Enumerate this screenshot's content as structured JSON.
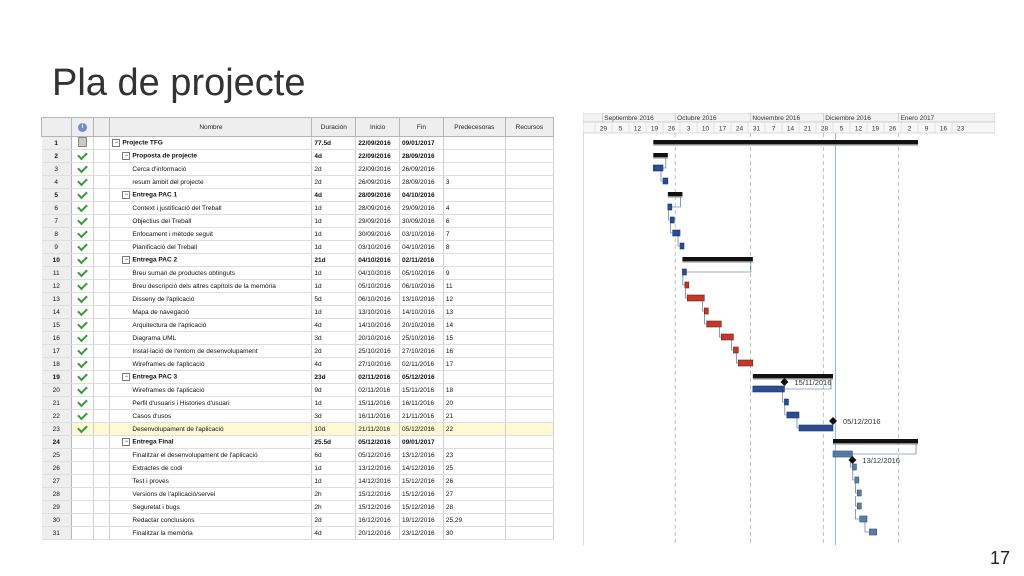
{
  "slide": {
    "title": "Pla de projecte",
    "number": "17"
  },
  "columns": {
    "name": "Nombre",
    "duration": "Duración",
    "start": "Inicio",
    "finish": "Fin",
    "predecessors": "Predecesoras",
    "resources": "Recursos",
    "info": "i"
  },
  "tasks": [
    {
      "id": "1",
      "name": "Projecte TFG",
      "dur": "77.5d",
      "start": "22/09/2016",
      "end": "09/01/2017",
      "pred": "",
      "summary": true,
      "level": 0,
      "icon": "note"
    },
    {
      "id": "2",
      "name": "Proposta de projecte",
      "dur": "4d",
      "start": "22/09/2016",
      "end": "28/09/2016",
      "pred": "",
      "summary": true,
      "level": 1,
      "icon": "check"
    },
    {
      "id": "3",
      "name": "Cerca d'informació",
      "dur": "2d",
      "start": "22/09/2016",
      "end": "26/09/2016",
      "pred": "",
      "summary": false,
      "level": 2,
      "icon": "check"
    },
    {
      "id": "4",
      "name": "resum àmbit del projecte",
      "dur": "2d",
      "start": "26/09/2016",
      "end": "28/09/2016",
      "pred": "3",
      "summary": false,
      "level": 2,
      "icon": "check"
    },
    {
      "id": "5",
      "name": "Entrega PAC 1",
      "dur": "4d",
      "start": "28/09/2016",
      "end": "04/10/2016",
      "pred": "",
      "summary": true,
      "level": 1,
      "icon": "check"
    },
    {
      "id": "6",
      "name": "Context i justificació del Treball",
      "dur": "1d",
      "start": "28/09/2016",
      "end": "29/09/2016",
      "pred": "4",
      "summary": false,
      "level": 2,
      "icon": "check"
    },
    {
      "id": "7",
      "name": "Objectius del Treball",
      "dur": "1d",
      "start": "29/09/2016",
      "end": "30/09/2016",
      "pred": "6",
      "summary": false,
      "level": 2,
      "icon": "check"
    },
    {
      "id": "8",
      "name": "Enfocament i mètode seguit",
      "dur": "1d",
      "start": "30/09/2016",
      "end": "03/10/2016",
      "pred": "7",
      "summary": false,
      "level": 2,
      "icon": "check"
    },
    {
      "id": "9",
      "name": "Planificació del Treball",
      "dur": "1d",
      "start": "03/10/2016",
      "end": "04/10/2016",
      "pred": "8",
      "summary": false,
      "level": 2,
      "icon": "check"
    },
    {
      "id": "10",
      "name": "Entrega PAC 2",
      "dur": "21d",
      "start": "04/10/2016",
      "end": "02/11/2016",
      "pred": "",
      "summary": true,
      "level": 1,
      "icon": "check"
    },
    {
      "id": "11",
      "name": "Breu sumari de productes obtinguts",
      "dur": "1d",
      "start": "04/10/2016",
      "end": "05/10/2016",
      "pred": "9",
      "summary": false,
      "level": 2,
      "icon": "check"
    },
    {
      "id": "12",
      "name": "Breu descripció dels altres capítols de la memòria",
      "dur": "1d",
      "start": "05/10/2016",
      "end": "06/10/2016",
      "pred": "11",
      "summary": false,
      "level": 2,
      "icon": "check"
    },
    {
      "id": "13",
      "name": "Disseny de l'aplicació",
      "dur": "5d",
      "start": "06/10/2016",
      "end": "13/10/2016",
      "pred": "12",
      "summary": false,
      "level": 2,
      "icon": "check"
    },
    {
      "id": "14",
      "name": "Mapa de navegació",
      "dur": "1d",
      "start": "13/10/2016",
      "end": "14/10/2016",
      "pred": "13",
      "summary": false,
      "level": 2,
      "icon": "check"
    },
    {
      "id": "15",
      "name": "Arquitectura de l'aplicació",
      "dur": "4d",
      "start": "14/10/2016",
      "end": "20/10/2016",
      "pred": "14",
      "summary": false,
      "level": 2,
      "icon": "check"
    },
    {
      "id": "16",
      "name": "Diagrama UML",
      "dur": "3d",
      "start": "20/10/2016",
      "end": "25/10/2016",
      "pred": "15",
      "summary": false,
      "level": 2,
      "icon": "check"
    },
    {
      "id": "17",
      "name": "Instal·lació de l'entorn de desenvolupament",
      "dur": "2d",
      "start": "25/10/2016",
      "end": "27/10/2016",
      "pred": "16",
      "summary": false,
      "level": 2,
      "icon": "check"
    },
    {
      "id": "18",
      "name": "Wireframes de l'aplicació",
      "dur": "4d",
      "start": "27/10/2016",
      "end": "02/11/2016",
      "pred": "17",
      "summary": false,
      "level": 2,
      "icon": "check"
    },
    {
      "id": "19",
      "name": "Entrega PAC 3",
      "dur": "23d",
      "start": "02/11/2016",
      "end": "05/12/2016",
      "pred": "",
      "summary": true,
      "level": 1,
      "icon": "check"
    },
    {
      "id": "20",
      "name": "Wireframes de l'aplicació",
      "dur": "9d",
      "start": "02/11/2016",
      "end": "15/11/2016",
      "pred": "18",
      "summary": false,
      "level": 2,
      "icon": "check"
    },
    {
      "id": "21",
      "name": "Perfil d'usuaris i Histories d'usuari",
      "dur": "1d",
      "start": "15/11/2016",
      "end": "16/11/2016",
      "pred": "20",
      "summary": false,
      "level": 2,
      "icon": "check"
    },
    {
      "id": "22",
      "name": "Casos d'usos",
      "dur": "3d",
      "start": "16/11/2016",
      "end": "21/11/2016",
      "pred": "21",
      "summary": false,
      "level": 2,
      "icon": "check"
    },
    {
      "id": "23",
      "name": "Desenvolupament de l'aplicació",
      "dur": "10d",
      "start": "21/11/2016",
      "end": "05/12/2016",
      "pred": "22",
      "summary": false,
      "level": 2,
      "icon": "check",
      "highlight": true
    },
    {
      "id": "24",
      "name": "Entrega Final",
      "dur": "25.5d",
      "start": "05/12/2016",
      "end": "09/01/2017",
      "pred": "",
      "summary": true,
      "level": 1,
      "icon": ""
    },
    {
      "id": "25",
      "name": "Finalitzar el desenvolupament de l'aplicació",
      "dur": "6d",
      "start": "05/12/2016",
      "end": "13/12/2016",
      "pred": "23",
      "summary": false,
      "level": 2,
      "icon": ""
    },
    {
      "id": "26",
      "name": "Extractes de codi",
      "dur": "1d",
      "start": "13/12/2016",
      "end": "14/12/2016",
      "pred": "25",
      "summary": false,
      "level": 2,
      "icon": ""
    },
    {
      "id": "27",
      "name": "Test i proves",
      "dur": "1d",
      "start": "14/12/2016",
      "end": "15/12/2016",
      "pred": "26",
      "summary": false,
      "level": 2,
      "icon": ""
    },
    {
      "id": "28",
      "name": "Versions de l'aplicació/servei",
      "dur": "2h",
      "start": "15/12/2016",
      "end": "15/12/2016",
      "pred": "27",
      "summary": false,
      "level": 2,
      "icon": ""
    },
    {
      "id": "29",
      "name": "Seguretat i bugs",
      "dur": "2h",
      "start": "15/12/2016",
      "end": "15/12/2016",
      "pred": "28",
      "summary": false,
      "level": 2,
      "icon": ""
    },
    {
      "id": "30",
      "name": "Redactar conclusions",
      "dur": "2d",
      "start": "16/12/2016",
      "end": "19/12/2016",
      "pred": "25,29",
      "summary": false,
      "level": 2,
      "icon": ""
    },
    {
      "id": "31",
      "name": "Finalitzar la memòria",
      "dur": "4d",
      "start": "20/12/2016",
      "end": "23/12/2016",
      "pred": "30",
      "summary": false,
      "level": 2,
      "icon": ""
    }
  ],
  "gantt": {
    "months": [
      "Septiembre 2016",
      "Octubre 2016",
      "Noviembre 2016",
      "Diciembre 2016",
      "Enero 2017"
    ],
    "weeks": [
      "29",
      "5",
      "12",
      "19",
      "26",
      "3",
      "10",
      "17",
      "24",
      "31",
      "7",
      "14",
      "21",
      "28",
      "5",
      "12",
      "19",
      "26",
      "2",
      "9",
      "16",
      "23"
    ],
    "milestone_labels": [
      "15/11/2016",
      "05/12/2016",
      "13/12/2016"
    ],
    "colors": {
      "summary": "#111111",
      "task_done": "#2a4d8f",
      "task_active": "#c0392b",
      "task_future": "#5b7ea6",
      "grid": "#999999",
      "today": "#9bb3d6"
    }
  }
}
